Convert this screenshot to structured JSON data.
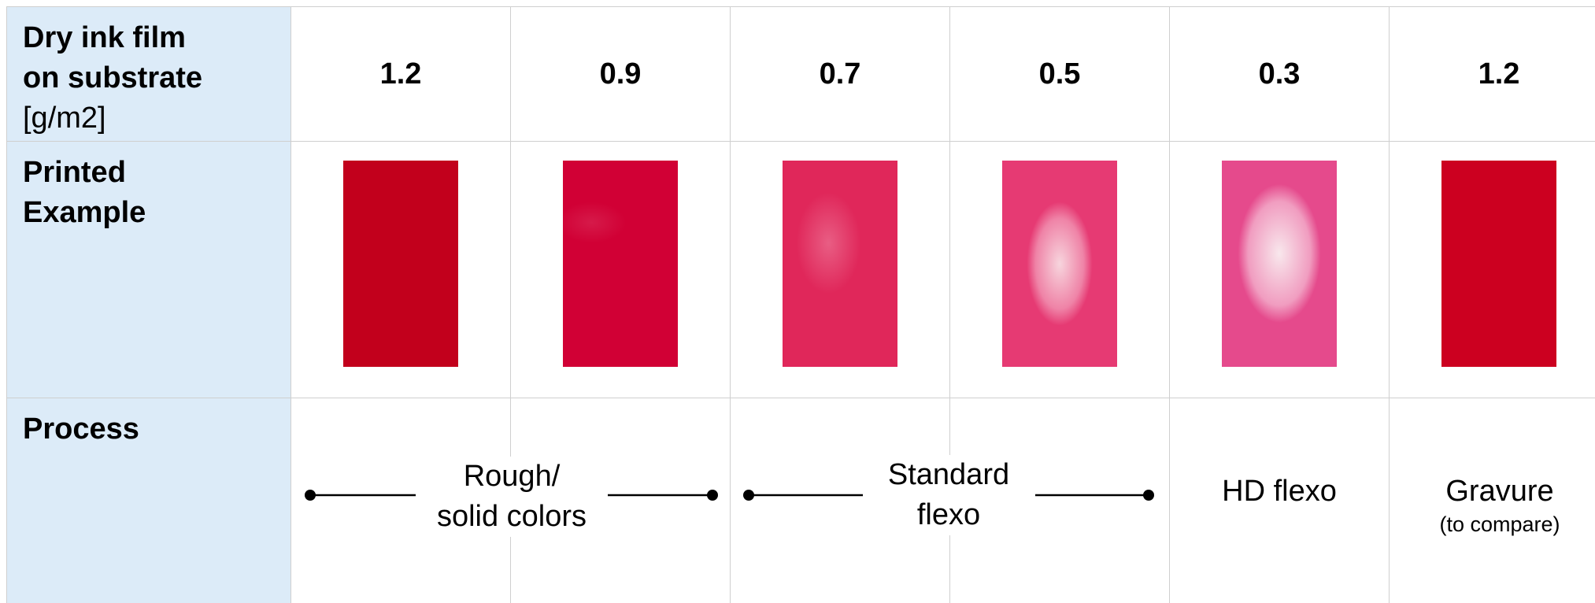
{
  "rows": {
    "film": {
      "title_bold_1": "Dry ink film",
      "title_bold_2": "on substrate",
      "unit": "[g/m2]"
    },
    "example": {
      "title_1": "Printed",
      "title_2": "Example"
    },
    "process": {
      "title": "Process"
    }
  },
  "film_values": [
    "1.2",
    "0.9",
    "0.7",
    "0.5",
    "0.3",
    "1.2"
  ],
  "swatches": [
    {
      "color": "#c2001c",
      "wear": "none"
    },
    {
      "color": "#d10035",
      "wear": "light"
    },
    {
      "color": "#e0275a",
      "wear": "faint"
    },
    {
      "color": "#e63a73",
      "wear": "medium"
    },
    {
      "color": "#e54a8c",
      "wear": "heavy"
    },
    {
      "color": "#cc0020",
      "wear": "none"
    }
  ],
  "processes": {
    "rough": {
      "line1": "Rough/",
      "line2": "solid colors"
    },
    "standard": {
      "line1": "Standard",
      "line2": "flexo"
    },
    "hd": {
      "label": "HD flexo"
    },
    "gravure": {
      "label": "Gravure",
      "note": "(to compare)"
    }
  }
}
